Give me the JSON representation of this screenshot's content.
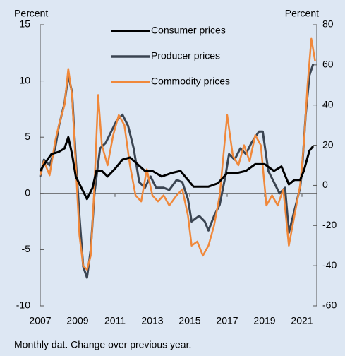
{
  "chart_data": {
    "type": "line",
    "y_label": "Percent",
    "y2_label": "Percent",
    "note": "Monthly dat. Change over previous year.",
    "xlim": [
      2007,
      2021.7
    ],
    "xticks": [
      2007,
      2009,
      2011,
      2013,
      2015,
      2017,
      2019,
      2021
    ],
    "ylim": [
      -10,
      15
    ],
    "yticks": [
      -10,
      -5,
      0,
      5,
      10,
      15
    ],
    "y2lim": [
      -60,
      80
    ],
    "y2ticks": [
      -60,
      -40,
      -20,
      0,
      20,
      40,
      60,
      80
    ],
    "grid": false,
    "legend": "top",
    "series": [
      {
        "name": "Consumer prices",
        "color": "#000000",
        "width": 3,
        "x": [
          2007.0,
          2007.3,
          2007.6,
          2008.0,
          2008.3,
          2008.5,
          2008.7,
          2008.9,
          2009.2,
          2009.5,
          2009.8,
          2010.0,
          2010.3,
          2010.6,
          2011.0,
          2011.4,
          2011.8,
          2012.2,
          2012.6,
          2013.0,
          2013.5,
          2014.0,
          2014.5,
          2014.9,
          2015.2,
          2015.6,
          2016.0,
          2016.5,
          2017.0,
          2017.5,
          2018.0,
          2018.5,
          2019.0,
          2019.5,
          2019.9,
          2020.3,
          2020.6,
          2020.9,
          2021.1,
          2021.4,
          2021.6
        ],
        "values": [
          2.0,
          2.8,
          3.5,
          3.7,
          4.0,
          5.0,
          3.5,
          1.5,
          0.5,
          -0.5,
          0.5,
          2.0,
          2.0,
          1.5,
          2.2,
          3.0,
          3.2,
          2.6,
          2.0,
          2.0,
          1.5,
          1.8,
          2.0,
          1.2,
          0.6,
          0.6,
          0.6,
          0.9,
          1.8,
          1.8,
          2.0,
          2.6,
          2.6,
          2.0,
          2.4,
          0.8,
          1.2,
          1.2,
          2.0,
          3.8,
          4.2
        ]
      },
      {
        "name": "Producer prices",
        "color": "#3b4552",
        "width": 3,
        "x": [
          2007.0,
          2007.2,
          2007.5,
          2007.8,
          2008.0,
          2008.3,
          2008.5,
          2008.7,
          2008.9,
          2009.1,
          2009.3,
          2009.5,
          2009.7,
          2009.9,
          2010.2,
          2010.5,
          2010.8,
          2011.1,
          2011.4,
          2011.7,
          2012.0,
          2012.3,
          2012.6,
          2012.9,
          2013.2,
          2013.6,
          2013.9,
          2014.3,
          2014.6,
          2014.9,
          2015.1,
          2015.5,
          2015.8,
          2016.0,
          2016.3,
          2016.6,
          2016.9,
          2017.1,
          2017.4,
          2017.7,
          2018.0,
          2018.3,
          2018.7,
          2018.9,
          2019.2,
          2019.5,
          2019.8,
          2020.1,
          2020.3,
          2020.6,
          2020.9,
          2021.0,
          2021.2,
          2021.4,
          2021.6
        ],
        "values": [
          1.5,
          3.0,
          2.5,
          4.0,
          6.0,
          8.0,
          10.5,
          9.0,
          3.0,
          -2.0,
          -6.5,
          -7.5,
          -5.0,
          0.0,
          4.0,
          4.5,
          5.5,
          6.5,
          7.0,
          6.0,
          4.0,
          1.0,
          0.5,
          1.5,
          0.5,
          0.5,
          0.3,
          1.2,
          1.0,
          -0.5,
          -2.5,
          -2.0,
          -2.5,
          -3.3,
          -2.0,
          -1.0,
          1.5,
          3.5,
          3.0,
          4.0,
          3.5,
          4.5,
          5.5,
          5.5,
          2.0,
          1.0,
          0.0,
          0.5,
          -3.5,
          -1.5,
          0.5,
          2.0,
          7.0,
          10.5,
          11.5
        ]
      },
      {
        "name": "Commodity prices",
        "color": "#f0883a",
        "width": 2.5,
        "axis": "y2",
        "x": [
          2007.0,
          2007.2,
          2007.5,
          2007.8,
          2008.0,
          2008.3,
          2008.5,
          2008.7,
          2008.9,
          2009.1,
          2009.3,
          2009.5,
          2009.7,
          2009.9,
          2010.1,
          2010.3,
          2010.6,
          2010.9,
          2011.2,
          2011.5,
          2011.8,
          2012.1,
          2012.4,
          2012.7,
          2013.0,
          2013.3,
          2013.6,
          2013.9,
          2014.3,
          2014.6,
          2014.9,
          2015.1,
          2015.4,
          2015.7,
          2016.0,
          2016.3,
          2016.6,
          2016.8,
          2017.0,
          2017.3,
          2017.6,
          2017.9,
          2018.2,
          2018.5,
          2018.8,
          2019.1,
          2019.4,
          2019.7,
          2020.0,
          2020.3,
          2020.6,
          2020.9,
          2021.1,
          2021.3,
          2021.5,
          2021.7
        ],
        "values": [
          5,
          12,
          5,
          22,
          30,
          40,
          58,
          45,
          10,
          -25,
          -40,
          -42,
          -35,
          0,
          45,
          20,
          10,
          25,
          35,
          30,
          10,
          -5,
          -8,
          8,
          -5,
          -8,
          -5,
          -10,
          -5,
          -2,
          -15,
          -30,
          -28,
          -35,
          -30,
          -20,
          -5,
          15,
          35,
          15,
          10,
          20,
          12,
          25,
          20,
          -10,
          -5,
          -10,
          -2,
          -30,
          -15,
          0,
          20,
          50,
          73,
          62
        ]
      }
    ]
  }
}
